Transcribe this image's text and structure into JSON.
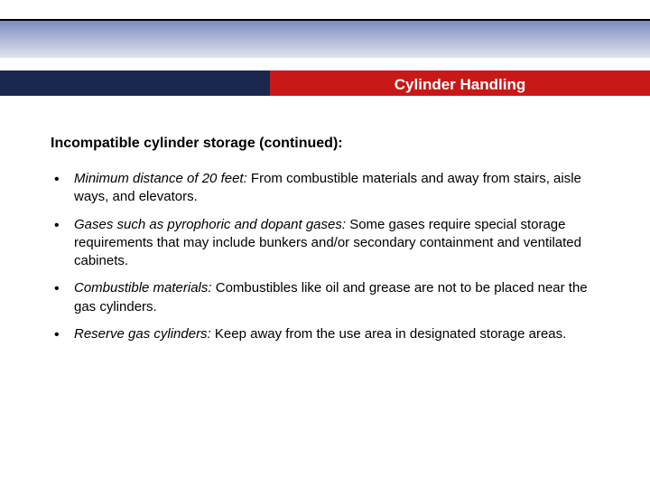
{
  "header": {
    "title": "Cylinder Handling"
  },
  "content": {
    "subtitle": "Incompatible cylinder storage (continued):",
    "bullets": [
      {
        "lead": "Minimum distance of 20 feet:",
        "rest": "  From combustible materials and away from stairs, aisle ways, and elevators."
      },
      {
        "lead": "Gases such as pyrophoric and dopant gases:",
        "rest": "  Some gases require special storage requirements that may include bunkers and/or secondary containment and ventilated cabinets."
      },
      {
        "lead": "Combustible materials:",
        "rest": "  Combustibles like oil and grease are not to be placed near the gas cylinders."
      },
      {
        "lead": "Reserve gas cylinders:",
        "rest": "  Keep away from the use area in designated storage areas."
      }
    ]
  },
  "colors": {
    "navy": "#1a2850",
    "red": "#c81818",
    "blue_grad_top": "#7a8bbf",
    "blue_grad_bottom": "#dfe3ee",
    "text": "#000000",
    "bg": "#ffffff"
  }
}
